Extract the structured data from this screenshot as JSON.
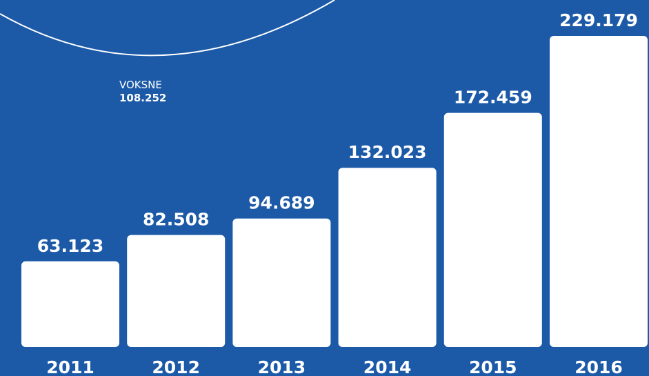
{
  "colors": {
    "background": "#1c5aa8",
    "bar": "#ffffff",
    "text": "#ffffff",
    "arc": "#ffffff"
  },
  "chart_data": {
    "type": "bar",
    "categories": [
      "2011",
      "2012",
      "2013",
      "2014",
      "2015",
      "2016"
    ],
    "values": [
      63123,
      82508,
      94689,
      132023,
      172459,
      229179
    ],
    "value_labels": [
      "63.123",
      "82.508",
      "94.689",
      "132.023",
      "172.459",
      "229.179"
    ],
    "ylim": [
      0,
      250000
    ],
    "grid": false,
    "annotation": {
      "label": "VOKSNE",
      "value": "108.252"
    }
  }
}
